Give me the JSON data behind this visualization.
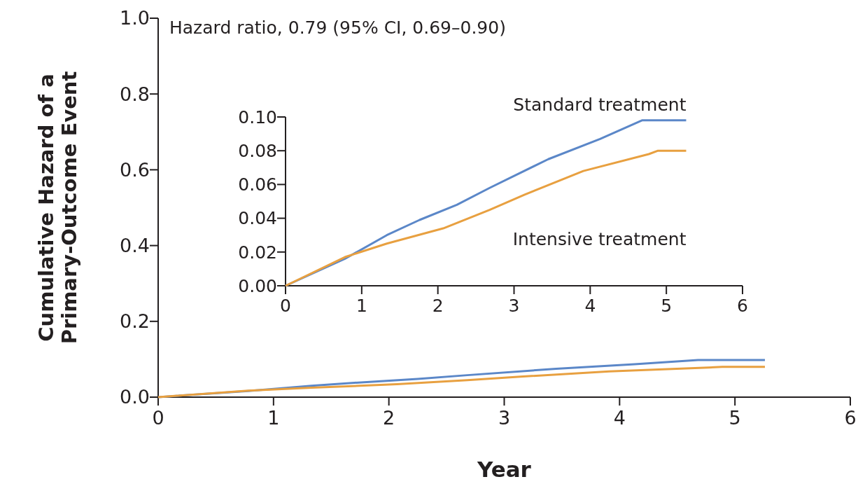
{
  "chart_data": [
    {
      "type": "line",
      "xlabel": "Year",
      "ylabel": "Cumulative Hazard of a Primary-Outcome Event",
      "annotations": [
        "Hazard ratio, 0.79 (95% CI, 0.69–0.90)"
      ],
      "xlim": [
        0,
        6
      ],
      "xticks": [
        0,
        1,
        2,
        3,
        4,
        5,
        6
      ],
      "ylim": [
        0,
        1
      ],
      "yticks": [
        {
          "value": 0,
          "label": "0.0"
        },
        0.2,
        0.4,
        0.6,
        0.8,
        {
          "value": 1,
          "label": "1.0"
        }
      ],
      "grid": false,
      "marker": "none",
      "line_style": "solid",
      "series": [
        {
          "color": "#5b87c8",
          "x": [
            0,
            0.78,
            1.33,
            1.76,
            2.25,
            2.68,
            3.45,
            4.13,
            4.68,
            5.26
          ],
          "values": [
            0,
            0.016,
            0.03,
            0.039,
            0.048,
            0.058,
            0.075,
            0.087,
            0.098,
            0.098
          ]
        },
        {
          "color": "#e8a040",
          "x": [
            0,
            0.78,
            1.33,
            2.07,
            2.68,
            3.14,
            3.91,
            4.77,
            4.89,
            5.26
          ],
          "values": [
            0,
            0.017,
            0.025,
            0.034,
            0.045,
            0.054,
            0.068,
            0.078,
            0.08,
            0.08
          ]
        }
      ]
    },
    {
      "type": "line",
      "xlim": [
        0,
        6
      ],
      "xticks": [
        0,
        1,
        2,
        3,
        4,
        5,
        6
      ],
      "ylim": [
        0,
        0.1
      ],
      "yticks": [
        {
          "value": 0,
          "label": "0.00"
        },
        0.02,
        0.04,
        0.06,
        0.08,
        {
          "value": 0.1,
          "label": "0.10"
        }
      ],
      "grid": false,
      "marker": "none",
      "line_style": "solid",
      "series": [
        {
          "name": "Standard treatment",
          "color": "#5b87c8",
          "x": [
            0,
            0.78,
            1.33,
            1.76,
            2.25,
            2.68,
            3.45,
            4.13,
            4.68,
            5.26
          ],
          "values": [
            0,
            0.016,
            0.03,
            0.039,
            0.048,
            0.058,
            0.075,
            0.087,
            0.098,
            0.098
          ]
        },
        {
          "name": "Intensive treatment",
          "color": "#e8a040",
          "x": [
            0,
            0.78,
            1.33,
            2.07,
            2.68,
            3.14,
            3.91,
            4.77,
            4.89,
            5.26
          ],
          "values": [
            0,
            0.017,
            0.025,
            0.034,
            0.045,
            0.054,
            0.068,
            0.078,
            0.08,
            0.08
          ]
        }
      ]
    }
  ]
}
